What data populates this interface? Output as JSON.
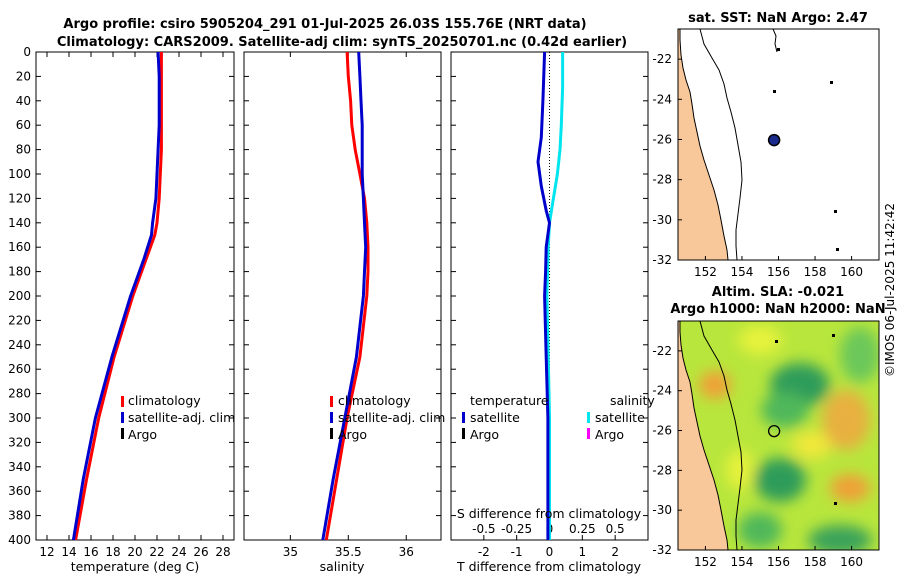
{
  "header": {
    "title_line1": "Argo profile: csiro 5905204_291 01-Jul-2025 26.03S 155.76E (NRT data)",
    "title_line2": "Climatology: CARS2009. Satellite-adj clim: synTS_20250701.nc (0.42d earlier)"
  },
  "watermark": "©IMOS 06-Jul-2025 11:42:42",
  "colors": {
    "climatology": "#ff0000",
    "satellite": "#0000cc",
    "argo": "#000000",
    "salinity_satellite": "#00e5ee",
    "salinity_argo": "#ff00ff",
    "land": "#f9c89a",
    "ocean_bg": "#ffffff"
  },
  "chart_data": [
    {
      "id": "temperature",
      "type": "line",
      "xlabel": "temperature (deg C)",
      "ylabel": "",
      "xlim": [
        11,
        29
      ],
      "ylim": [
        400,
        0
      ],
      "xticks": [
        "12",
        "14",
        "16",
        "18",
        "20",
        "22",
        "24",
        "26",
        "28"
      ],
      "yticks": [
        "0",
        "20",
        "40",
        "60",
        "80",
        "100",
        "120",
        "140",
        "160",
        "180",
        "200",
        "220",
        "240",
        "260",
        "280",
        "300",
        "320",
        "340",
        "360",
        "380",
        "400"
      ],
      "series": [
        {
          "name": "climatology",
          "depth": [
            0,
            20,
            40,
            60,
            80,
            100,
            120,
            140,
            150,
            170,
            200,
            250,
            300,
            350,
            400
          ],
          "values": [
            22.4,
            22.4,
            22.4,
            22.4,
            22.4,
            22.3,
            22.2,
            22.0,
            21.8,
            21.0,
            19.8,
            18.1,
            16.7,
            15.6,
            14.6
          ]
        },
        {
          "name": "satellite-adj. clim",
          "depth": [
            0,
            20,
            40,
            60,
            80,
            100,
            120,
            140,
            150,
            170,
            200,
            250,
            300,
            350,
            400
          ],
          "values": [
            22.1,
            22.2,
            22.2,
            22.2,
            22.1,
            22.0,
            21.9,
            21.6,
            21.5,
            20.8,
            19.6,
            17.9,
            16.4,
            15.3,
            14.4
          ]
        }
      ],
      "legend": {
        "position": "lower-right",
        "entries": [
          "climatology",
          "satellite-adj. clim",
          "Argo"
        ]
      }
    },
    {
      "id": "salinity",
      "type": "line",
      "xlabel": "salinity",
      "xlim": [
        34.6,
        36.3
      ],
      "ylim": [
        400,
        0
      ],
      "xticks": [
        "35",
        "35.5",
        "36"
      ],
      "series": [
        {
          "name": "climatology",
          "depth": [
            0,
            20,
            40,
            60,
            80,
            100,
            120,
            140,
            160,
            180,
            200,
            250,
            300,
            350,
            400
          ],
          "values": [
            35.49,
            35.5,
            35.52,
            35.53,
            35.56,
            35.6,
            35.64,
            35.66,
            35.67,
            35.67,
            35.66,
            35.6,
            35.49,
            35.4,
            35.31
          ]
        },
        {
          "name": "satellite-adj. clim",
          "depth": [
            0,
            20,
            40,
            60,
            80,
            100,
            120,
            140,
            160,
            180,
            200,
            250,
            300,
            350,
            400
          ],
          "values": [
            35.59,
            35.6,
            35.61,
            35.62,
            35.62,
            35.62,
            35.63,
            35.64,
            35.65,
            35.64,
            35.63,
            35.57,
            35.47,
            35.37,
            35.28
          ]
        }
      ],
      "legend": {
        "position": "lower-right",
        "entries": [
          "climatology",
          "satellite-adj. clim",
          "Argo"
        ]
      }
    },
    {
      "id": "difference",
      "type": "line",
      "xlabel": "T difference from climatology",
      "top_label": "S difference from climatology",
      "xlim": [
        -3,
        3
      ],
      "ylim": [
        400,
        0
      ],
      "xticks": [
        "-2",
        "-1",
        "0",
        "1",
        "2"
      ],
      "top_ticks": [
        "-0.5",
        "-0.25",
        "0",
        "0.25",
        "0.5"
      ],
      "series": [
        {
          "name": "temperature satellite",
          "depth": [
            0,
            40,
            70,
            90,
            110,
            130,
            140,
            160,
            180,
            200,
            250,
            300,
            350,
            400
          ],
          "values": [
            -0.15,
            -0.2,
            -0.25,
            -0.35,
            -0.25,
            -0.1,
            0.0,
            -0.1,
            -0.12,
            -0.15,
            -0.1,
            -0.05,
            -0.05,
            -0.05
          ]
        },
        {
          "name": "salinity satellite",
          "depth": [
            0,
            30,
            60,
            80,
            100,
            120,
            140,
            160,
            200,
            250,
            300,
            350,
            400
          ],
          "values": [
            0.1,
            0.1,
            0.09,
            0.08,
            0.06,
            0.03,
            0.0,
            -0.01,
            -0.02,
            -0.01,
            0.0,
            0.0,
            0.0
          ]
        }
      ],
      "legend": {
        "temperature_title": "temperature",
        "salinity_title": "salinity",
        "entries_t": [
          "satellite",
          "Argo"
        ],
        "entries_s": [
          "satellite",
          "Argo"
        ]
      }
    },
    {
      "id": "sst-map",
      "type": "map",
      "title": "sat. SST: NaN Argo: 2.47",
      "lon_range": [
        150.5,
        161.5
      ],
      "lat_range": [
        -32,
        -20.5
      ],
      "xticks": [
        "152",
        "154",
        "156",
        "158",
        "160"
      ],
      "yticks": [
        "-22",
        "-24",
        "-26",
        "-28",
        "-30",
        "-32"
      ],
      "float_position": {
        "lon": 155.76,
        "lat": -26.03
      }
    },
    {
      "id": "sla-map",
      "type": "map",
      "title_line1": "Altim. SLA: -0.021",
      "title_line2": "Argo h1000: NaN h2000: NaN",
      "lon_range": [
        150.5,
        161.5
      ],
      "lat_range": [
        -32,
        -20.5
      ],
      "xticks": [
        "152",
        "154",
        "156",
        "158",
        "160"
      ],
      "yticks": [
        "-22",
        "-24",
        "-26",
        "-28",
        "-30",
        "-32"
      ],
      "float_position": {
        "lon": 155.76,
        "lat": -26.03
      }
    }
  ]
}
